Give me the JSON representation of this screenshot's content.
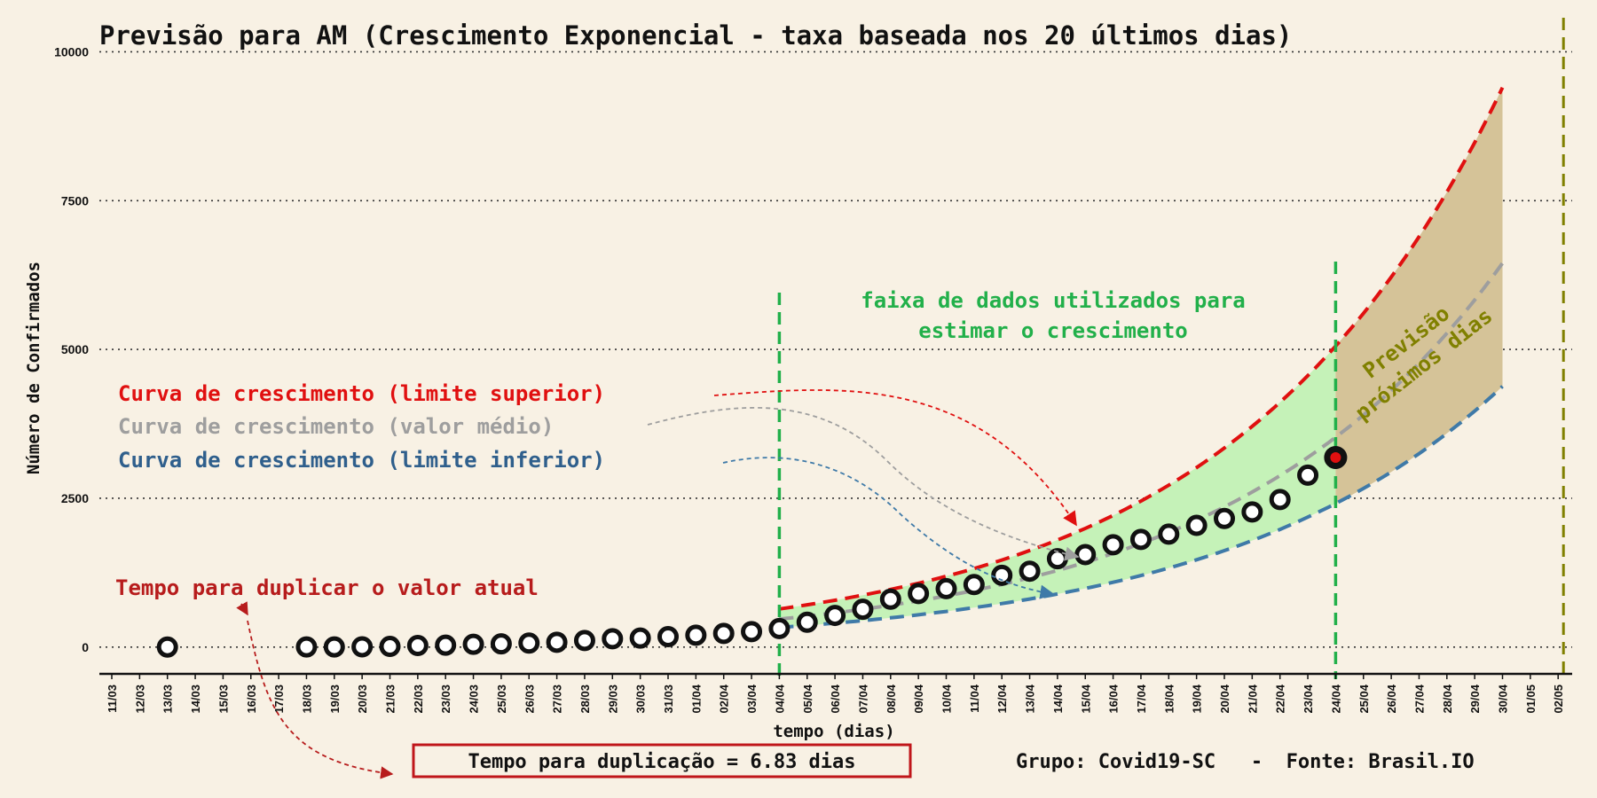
{
  "chart_data": {
    "type": "line",
    "title": "Previsão para AM (Crescimento Exponencial - taxa baseada nos 20 últimos dias)",
    "xlabel": "tempo (dias)",
    "ylabel": "Número de Confirmados",
    "ylim": [
      -450,
      10200
    ],
    "yticks": [
      0,
      2500,
      5000,
      7500,
      10000
    ],
    "grid": "horizontal dotted",
    "categories": [
      "11/03",
      "12/03",
      "13/03",
      "14/03",
      "15/03",
      "16/03",
      "17/03",
      "18/03",
      "19/03",
      "20/03",
      "21/03",
      "22/03",
      "23/03",
      "24/03",
      "25/03",
      "26/03",
      "27/03",
      "28/03",
      "29/03",
      "30/03",
      "31/03",
      "01/04",
      "02/04",
      "03/04",
      "04/04",
      "05/04",
      "06/04",
      "07/04",
      "08/04",
      "09/04",
      "10/04",
      "11/04",
      "12/04",
      "13/04",
      "14/04",
      "15/04",
      "16/04",
      "17/04",
      "18/04",
      "19/04",
      "20/04",
      "21/04",
      "22/04",
      "23/04",
      "24/04",
      "25/04",
      "26/04",
      "27/04",
      "28/04",
      "29/04",
      "30/04",
      "01/05",
      "02/05"
    ],
    "confirmed": {
      "name": "Confirmados",
      "points": [
        {
          "date": "13/03",
          "value": 1
        },
        {
          "date": "18/03",
          "value": 2
        },
        {
          "date": "19/03",
          "value": 3
        },
        {
          "date": "20/03",
          "value": 5
        },
        {
          "date": "21/03",
          "value": 11
        },
        {
          "date": "22/03",
          "value": 26
        },
        {
          "date": "23/03",
          "value": 32
        },
        {
          "date": "24/03",
          "value": 47
        },
        {
          "date": "25/03",
          "value": 54
        },
        {
          "date": "26/03",
          "value": 67
        },
        {
          "date": "27/03",
          "value": 81
        },
        {
          "date": "28/03",
          "value": 111
        },
        {
          "date": "29/03",
          "value": 140
        },
        {
          "date": "30/03",
          "value": 151
        },
        {
          "date": "31/03",
          "value": 175
        },
        {
          "date": "01/04",
          "value": 200
        },
        {
          "date": "02/04",
          "value": 229
        },
        {
          "date": "03/04",
          "value": 260
        },
        {
          "date": "04/04",
          "value": 311
        },
        {
          "date": "05/04",
          "value": 417
        },
        {
          "date": "06/04",
          "value": 532
        },
        {
          "date": "07/04",
          "value": 636
        },
        {
          "date": "08/04",
          "value": 804
        },
        {
          "date": "09/04",
          "value": 899
        },
        {
          "date": "10/04",
          "value": 981
        },
        {
          "date": "11/04",
          "value": 1050
        },
        {
          "date": "12/04",
          "value": 1206
        },
        {
          "date": "13/04",
          "value": 1275
        },
        {
          "date": "14/04",
          "value": 1484
        },
        {
          "date": "15/04",
          "value": 1554
        },
        {
          "date": "16/04",
          "value": 1719
        },
        {
          "date": "17/04",
          "value": 1809
        },
        {
          "date": "18/04",
          "value": 1897
        },
        {
          "date": "19/04",
          "value": 2044
        },
        {
          "date": "20/04",
          "value": 2160
        },
        {
          "date": "21/04",
          "value": 2270
        },
        {
          "date": "22/04",
          "value": 2479
        },
        {
          "date": "23/04",
          "value": 2888
        },
        {
          "date": "24/04",
          "value": 3185
        }
      ],
      "last_point": "24/04"
    },
    "curves": {
      "from": "04/04",
      "split": "24/04",
      "to": "30/04",
      "upper": {
        "name": "Curva de crescimento (limite superior)",
        "start": 640,
        "end": 9400,
        "color": "#e01010"
      },
      "mean": {
        "name": "Curva de crescimento (valor médio)",
        "start": 470,
        "end": 6450,
        "color": "#9e9e9e"
      },
      "lower": {
        "name": "Curva de crescimento (limite inferior)",
        "start": 330,
        "end": 4380,
        "color": "#3f7aa8"
      }
    },
    "fit_range": {
      "start": "04/04",
      "end": "24/04",
      "label_line1": "faixa de dados utilizados para",
      "label_line2": "estimar o crescimento"
    },
    "forecast_label_line1": "Previsão",
    "forecast_label_line2": "próximos dias",
    "end_line": "02/05",
    "doubling_label": "Tempo para duplicar o valor atual",
    "doubling_box": "Tempo para duplicação = 6.83 dias",
    "source": "Grupo: Covid19-SC   -  Fonte: Brasil.IO"
  },
  "colors": {
    "background": "#f8f1e4",
    "band_fit": "#c5f2b8",
    "band_forecast": "#d5c398",
    "fit_lines": "#22b04a",
    "end_line": "#808000",
    "doubling": "#b71c1c",
    "upper": "#e01010",
    "mean": "#9e9e9e",
    "lower": "#3f7aa8"
  }
}
